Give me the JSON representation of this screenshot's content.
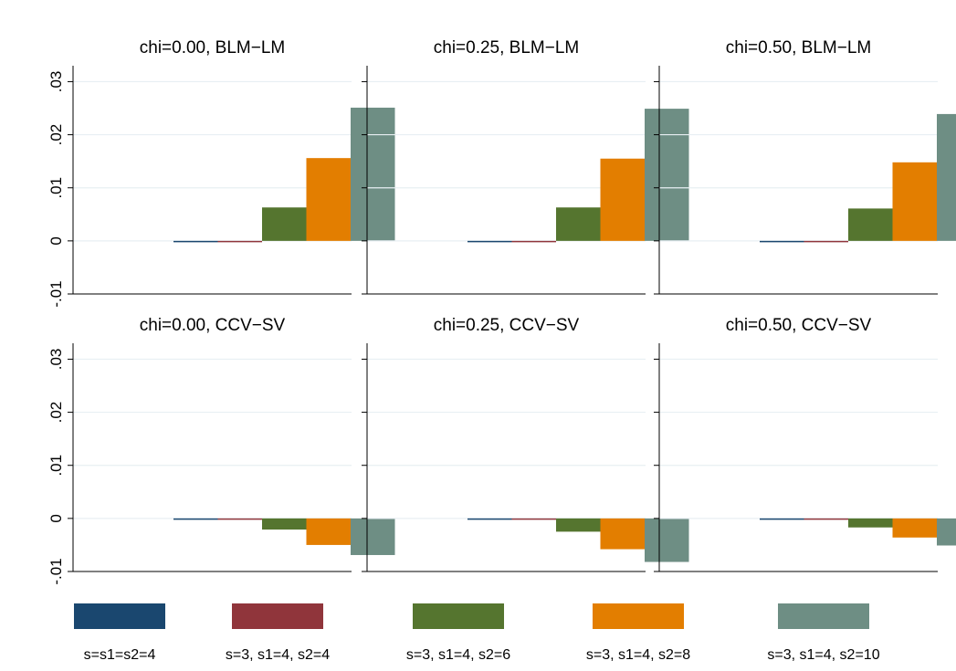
{
  "chart_data": {
    "type": "bar",
    "layout": "2x3 small multiples with shared legend at bottom",
    "grid": true,
    "ylim": [
      -0.01,
      0.033
    ],
    "yticks": [
      -0.01,
      0,
      0.01,
      0.02,
      0.03
    ],
    "ytick_labels": [
      "-.01",
      "0",
      ".01",
      ".02",
      ".03"
    ],
    "legend": {
      "placement": "bottom",
      "entries": [
        {
          "label": "s=s1=s2=4",
          "color": "#1a476f"
        },
        {
          "label": "s=3, s1=4, s2=4",
          "color": "#90353b"
        },
        {
          "label": "s=3, s1=4, s2=6",
          "color": "#55752f"
        },
        {
          "label": "s=3, s1=4, s2=8",
          "color": "#e37e00"
        },
        {
          "label": "s=3, s1=4, s2=10",
          "color": "#6e8e84"
        }
      ]
    },
    "panels": [
      {
        "title": "chi=0.00, BLM−LM",
        "values": [
          0.0,
          -0.0002,
          0.0063,
          0.0156,
          0.0251
        ]
      },
      {
        "title": "chi=0.25, BLM−LM",
        "values": [
          -0.0002,
          -0.0002,
          0.0063,
          0.0155,
          0.0249
        ]
      },
      {
        "title": "chi=0.50, BLM−LM",
        "values": [
          -0.0002,
          -0.0002,
          0.0061,
          0.0148,
          0.0239
        ]
      },
      {
        "title": "chi=0.00, CCV−SV",
        "values": [
          -0.0002,
          -0.0002,
          -0.0021,
          -0.005,
          -0.0069
        ]
      },
      {
        "title": "chi=0.25, CCV−SV",
        "values": [
          -0.0002,
          -0.0002,
          -0.0025,
          -0.0058,
          -0.0082
        ]
      },
      {
        "title": "chi=0.50, CCV−SV",
        "values": [
          -0.0002,
          -0.0002,
          -0.0017,
          -0.0036,
          -0.0051
        ]
      }
    ]
  }
}
